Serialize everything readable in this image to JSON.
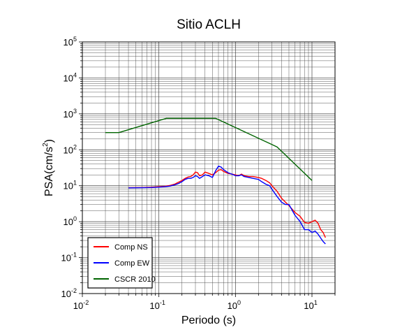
{
  "chart_data": {
    "type": "line",
    "title": "Sitio ACLH",
    "xlabel": "Periodo (s)",
    "ylabel": "PSA(cm/s",
    "ylabel_exponent": "2",
    "ylabel_suffix": ")",
    "x_scale": "log",
    "y_scale": "log",
    "xlim": [
      0.01,
      20
    ],
    "ylim": [
      0.01,
      100000
    ],
    "grid": true,
    "legend_position": "bottom-left",
    "x_ticks": [
      {
        "base": "10",
        "exp": "-2"
      },
      {
        "base": "10",
        "exp": "-1"
      },
      {
        "base": "10",
        "exp": "0"
      },
      {
        "base": "10",
        "exp": "1"
      }
    ],
    "y_ticks": [
      {
        "base": "10",
        "exp": "-2"
      },
      {
        "base": "10",
        "exp": "-1"
      },
      {
        "base": "10",
        "exp": "0"
      },
      {
        "base": "10",
        "exp": "1"
      },
      {
        "base": "10",
        "exp": "2"
      },
      {
        "base": "10",
        "exp": "3"
      },
      {
        "base": "10",
        "exp": "4"
      },
      {
        "base": "10",
        "exp": "5"
      }
    ],
    "series": [
      {
        "name": "Comp NS",
        "color": "#ff0000",
        "points": [
          [
            0.04,
            8.8
          ],
          [
            0.06,
            8.9
          ],
          [
            0.08,
            9.1
          ],
          [
            0.1,
            9.4
          ],
          [
            0.12,
            9.7
          ],
          [
            0.14,
            10.2
          ],
          [
            0.16,
            11
          ],
          [
            0.18,
            12.5
          ],
          [
            0.2,
            14
          ],
          [
            0.22,
            16
          ],
          [
            0.24,
            17.5
          ],
          [
            0.26,
            18
          ],
          [
            0.28,
            20
          ],
          [
            0.3,
            24
          ],
          [
            0.32,
            23
          ],
          [
            0.34,
            19
          ],
          [
            0.37,
            20
          ],
          [
            0.4,
            24
          ],
          [
            0.45,
            22
          ],
          [
            0.5,
            20
          ],
          [
            0.55,
            23
          ],
          [
            0.6,
            27
          ],
          [
            0.65,
            28
          ],
          [
            0.7,
            25
          ],
          [
            0.8,
            22
          ],
          [
            0.9,
            21
          ],
          [
            1.0,
            20
          ],
          [
            1.1,
            19
          ],
          [
            1.2,
            21
          ],
          [
            1.3,
            19
          ],
          [
            1.5,
            18
          ],
          [
            1.7,
            18
          ],
          [
            2.0,
            17
          ],
          [
            2.2,
            16
          ],
          [
            2.5,
            14
          ],
          [
            2.8,
            12
          ],
          [
            3.0,
            10
          ],
          [
            3.5,
            7
          ],
          [
            4.0,
            4.5
          ],
          [
            4.5,
            3.5
          ],
          [
            5.0,
            2.8
          ],
          [
            6.0,
            1.8
          ],
          [
            7.0,
            1.4
          ],
          [
            8.0,
            0.95
          ],
          [
            9.0,
            0.9
          ],
          [
            10.0,
            1.0
          ],
          [
            11.0,
            1.1
          ],
          [
            12.0,
            0.9
          ],
          [
            13.0,
            0.6
          ],
          [
            14.0,
            0.5
          ],
          [
            15.0,
            0.36
          ]
        ]
      },
      {
        "name": "Comp EW",
        "color": "#0000ff",
        "points": [
          [
            0.04,
            8.7
          ],
          [
            0.06,
            8.8
          ],
          [
            0.08,
            8.9
          ],
          [
            0.1,
            9.1
          ],
          [
            0.12,
            9.4
          ],
          [
            0.14,
            9.8
          ],
          [
            0.16,
            10.5
          ],
          [
            0.18,
            11.5
          ],
          [
            0.2,
            13
          ],
          [
            0.22,
            15
          ],
          [
            0.24,
            16
          ],
          [
            0.26,
            16
          ],
          [
            0.28,
            17
          ],
          [
            0.3,
            19
          ],
          [
            0.32,
            18
          ],
          [
            0.34,
            16
          ],
          [
            0.37,
            18
          ],
          [
            0.4,
            20
          ],
          [
            0.45,
            19
          ],
          [
            0.5,
            17
          ],
          [
            0.55,
            26
          ],
          [
            0.6,
            35
          ],
          [
            0.65,
            33
          ],
          [
            0.7,
            28
          ],
          [
            0.8,
            23
          ],
          [
            0.9,
            21
          ],
          [
            1.0,
            19
          ],
          [
            1.1,
            19
          ],
          [
            1.2,
            20
          ],
          [
            1.3,
            18
          ],
          [
            1.5,
            17
          ],
          [
            1.7,
            16
          ],
          [
            2.0,
            15
          ],
          [
            2.2,
            13
          ],
          [
            2.5,
            11
          ],
          [
            2.8,
            10
          ],
          [
            3.0,
            8
          ],
          [
            3.5,
            5
          ],
          [
            4.0,
            3.5
          ],
          [
            4.5,
            3
          ],
          [
            5.0,
            3
          ],
          [
            6.0,
            1.5
          ],
          [
            7.0,
            1.0
          ],
          [
            8.0,
            0.6
          ],
          [
            9.0,
            0.6
          ],
          [
            10.0,
            0.5
          ],
          [
            11.0,
            0.55
          ],
          [
            12.0,
            0.45
          ],
          [
            13.0,
            0.35
          ],
          [
            14.0,
            0.28
          ],
          [
            15.0,
            0.24
          ]
        ]
      },
      {
        "name": "CSCR 2010",
        "color": "#006400",
        "points": [
          [
            0.02,
            300
          ],
          [
            0.03,
            300
          ],
          [
            0.125,
            750
          ],
          [
            0.55,
            750
          ],
          [
            3.5,
            120
          ],
          [
            10.0,
            14
          ]
        ]
      }
    ]
  }
}
